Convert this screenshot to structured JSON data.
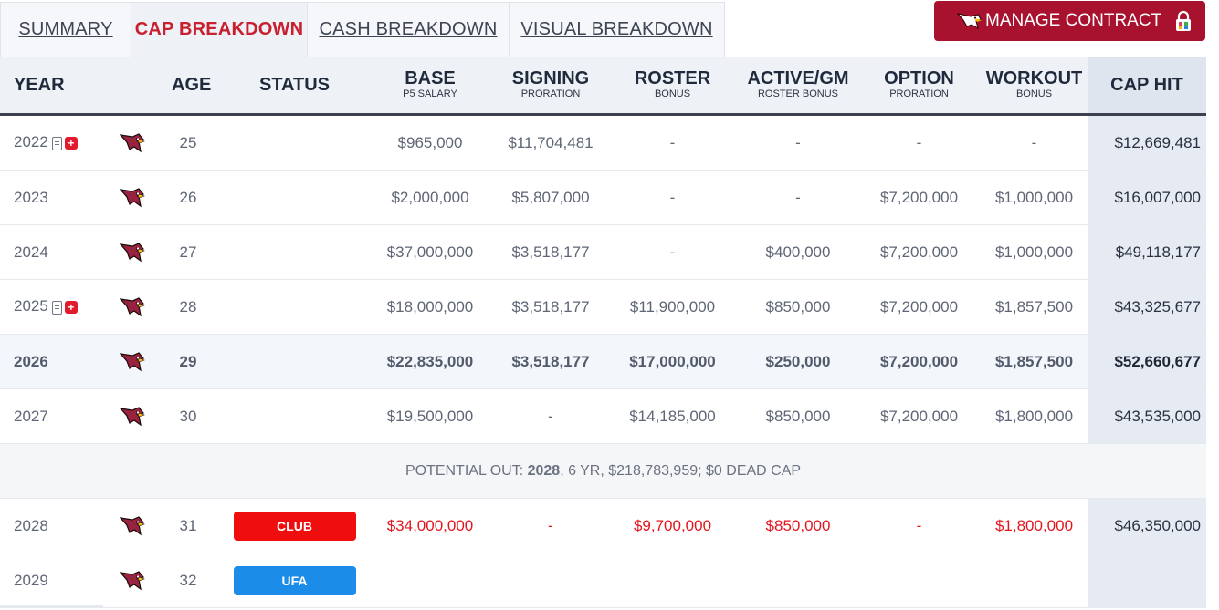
{
  "tabs": [
    {
      "label": "SUMMARY",
      "active": false
    },
    {
      "label": "CAP BREAKDOWN",
      "active": true
    },
    {
      "label": "CASH BREAKDOWN",
      "active": false
    },
    {
      "label": "VISUAL BREAKDOWN",
      "active": false
    }
  ],
  "manage_button": {
    "label": "MANAGE CONTRACT"
  },
  "columns": [
    {
      "label": "YEAR",
      "sub": ""
    },
    {
      "label": "",
      "sub": ""
    },
    {
      "label": "AGE",
      "sub": ""
    },
    {
      "label": "STATUS",
      "sub": ""
    },
    {
      "label": "BASE",
      "sub": "P5 SALARY"
    },
    {
      "label": "SIGNING",
      "sub": "PRORATION"
    },
    {
      "label": "ROSTER",
      "sub": "BONUS"
    },
    {
      "label": "ACTIVE/GM",
      "sub": "ROSTER BONUS"
    },
    {
      "label": "OPTION",
      "sub": "PRORATION"
    },
    {
      "label": "WORKOUT",
      "sub": "BONUS"
    },
    {
      "label": "CAP HIT",
      "sub": ""
    }
  ],
  "rows": [
    {
      "year": "2022",
      "age": "25",
      "status": "",
      "base": "$965,000",
      "signing": "$11,704,481",
      "roster": "-",
      "active": "-",
      "option": "-",
      "workout": "-",
      "cap": "$12,669,481"
    },
    {
      "year": "2023",
      "age": "26",
      "status": "",
      "base": "$2,000,000",
      "signing": "$5,807,000",
      "roster": "-",
      "active": "-",
      "option": "$7,200,000",
      "workout": "$1,000,000",
      "cap": "$16,007,000"
    },
    {
      "year": "2024",
      "age": "27",
      "status": "",
      "base": "$37,000,000",
      "signing": "$3,518,177",
      "roster": "-",
      "active": "$400,000",
      "option": "$7,200,000",
      "workout": "$1,000,000",
      "cap": "$49,118,177"
    },
    {
      "year": "2025",
      "age": "28",
      "status": "",
      "base": "$18,000,000",
      "signing": "$3,518,177",
      "roster": "$11,900,000",
      "active": "$850,000",
      "option": "$7,200,000",
      "workout": "$1,857,500",
      "cap": "$43,325,677"
    },
    {
      "year": "2026",
      "age": "29",
      "status": "",
      "base": "$22,835,000",
      "signing": "$3,518,177",
      "roster": "$17,000,000",
      "active": "$250,000",
      "option": "$7,200,000",
      "workout": "$1,857,500",
      "cap": "$52,660,677"
    },
    {
      "year": "2027",
      "age": "30",
      "status": "",
      "base": "$19,500,000",
      "signing": "-",
      "roster": "$14,185,000",
      "active": "$850,000",
      "option": "$7,200,000",
      "workout": "$1,800,000",
      "cap": "$43,535,000"
    },
    {
      "year": "2028",
      "age": "31",
      "status": "CLUB",
      "base": "$34,000,000",
      "signing": "-",
      "roster": "$9,700,000",
      "active": "$850,000",
      "option": "-",
      "workout": "$1,800,000",
      "cap": "$46,350,000"
    },
    {
      "year": "2029",
      "age": "32",
      "status": "UFA",
      "base": "",
      "signing": "",
      "roster": "",
      "active": "",
      "option": "",
      "workout": "",
      "cap": ""
    }
  ],
  "potential_out": {
    "prefix": "POTENTIAL OUT: ",
    "year": "2028",
    "rest": ", 6 YR, $218,783,959; $0 DEAD CAP"
  },
  "colors": {
    "accent": "#c8202e",
    "manage_bg": "#a8122f",
    "club_badge": "#ef0d0d",
    "ufa_badge": "#1b8de8",
    "future_text": "#e4141e"
  }
}
